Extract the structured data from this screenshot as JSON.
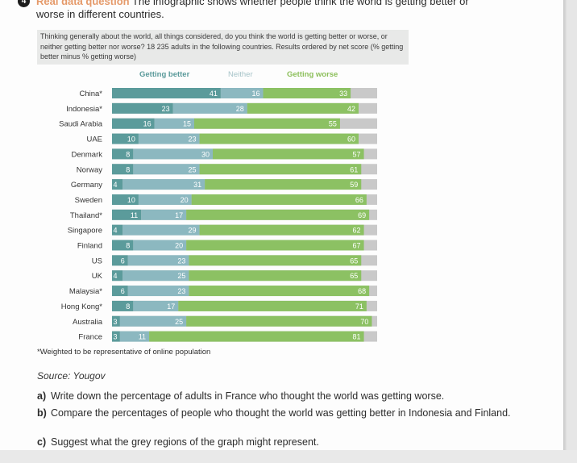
{
  "question": {
    "number": "4",
    "tag": "Real data question",
    "line1": "The infographic shows whether people think the world is getting better or",
    "line2": "worse in different countries."
  },
  "survey_text": "Thinking generally about the world, all things considered, do you think the world is getting better or worse, or neither getting better nor worse? 18 235 adults in the following countries. Results ordered by net score (% getting better minus % getting worse)",
  "footnote": "*Weighted to be representative of online population",
  "source": "Source: Yougov",
  "subquestions": [
    {
      "label": "a)",
      "text": "Write down the percentage of adults in France who thought the world was getting worse."
    },
    {
      "label": "b)",
      "text": "Compare the percentages of people who thought the world was getting better in Indonesia and Finland."
    },
    {
      "label": "c)",
      "text": "Suggest what the grey regions of the graph might represent."
    }
  ],
  "colors": {
    "better": "#5b9b9b",
    "neither": "#8cb8c0",
    "worse": "#8cc163",
    "remainder": "#c9c9c9"
  },
  "chart_data": {
    "type": "bar",
    "orientation": "horizontal",
    "stacked": true,
    "title": "",
    "xlabel": "",
    "ylabel": "",
    "xlim": [
      0,
      100
    ],
    "legend": [
      "Getting better",
      "Neither",
      "Getting worse"
    ],
    "legend_position": "top",
    "categories": [
      "China*",
      "Indonesia*",
      "Saudi Arabia",
      "UAE",
      "Denmark",
      "Norway",
      "Germany",
      "Sweden",
      "Thailand*",
      "Singapore",
      "Finland",
      "US",
      "UK",
      "Malaysia*",
      "Hong Kong*",
      "Australia",
      "France"
    ],
    "series": [
      {
        "name": "Getting better",
        "values": [
          41,
          23,
          16,
          10,
          8,
          8,
          4,
          10,
          11,
          4,
          8,
          6,
          4,
          6,
          8,
          3,
          3
        ]
      },
      {
        "name": "Neither",
        "values": [
          16,
          28,
          15,
          23,
          30,
          25,
          31,
          20,
          17,
          29,
          20,
          23,
          25,
          23,
          17,
          25,
          11
        ]
      },
      {
        "name": "Getting worse",
        "values": [
          33,
          42,
          55,
          60,
          57,
          61,
          59,
          66,
          69,
          62,
          67,
          65,
          65,
          68,
          71,
          70,
          81
        ]
      }
    ],
    "grid": false
  }
}
